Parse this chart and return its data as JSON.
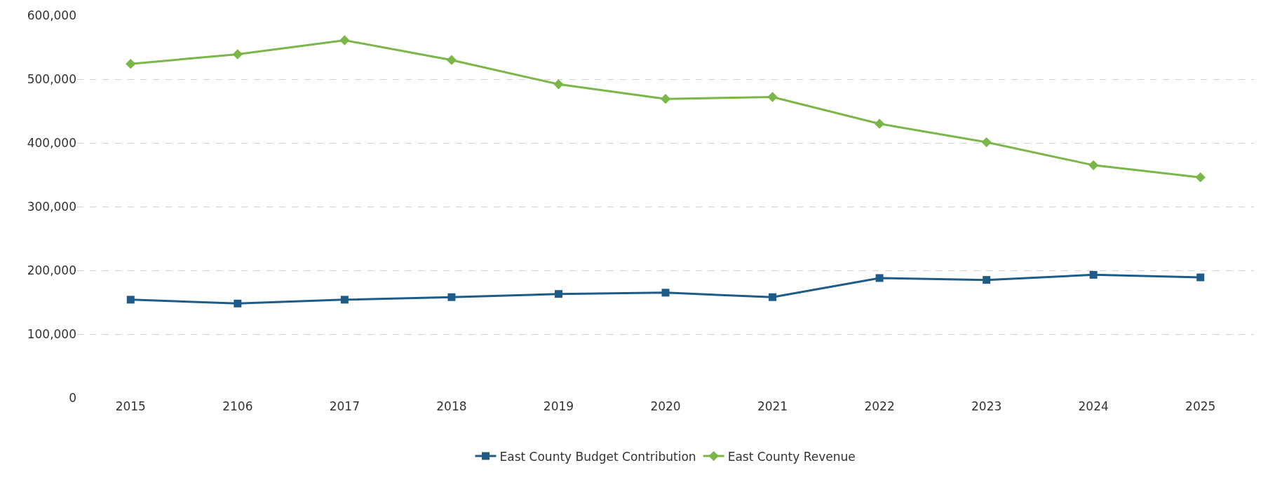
{
  "chart_data": {
    "type": "line",
    "categories": [
      "2015",
      "2106",
      "2017",
      "2018",
      "2019",
      "2020",
      "2021",
      "2022",
      "2023",
      "2024",
      "2025"
    ],
    "series": [
      {
        "name": "East County Budget Contribution",
        "color": "#1d5c88",
        "marker": "square",
        "values": [
          154000,
          148000,
          154000,
          158000,
          163000,
          165000,
          158000,
          188000,
          185000,
          193000,
          189000
        ]
      },
      {
        "name": "East County Revenue",
        "color": "#7ab648",
        "marker": "diamond",
        "values": [
          524000,
          539000,
          561000,
          530000,
          492000,
          469000,
          472000,
          430000,
          401000,
          365000,
          346000
        ]
      }
    ],
    "ylim": [
      0,
      600000
    ],
    "yticks": [
      {
        "value": 0,
        "label": "0"
      },
      {
        "value": 100000,
        "label": "100,000"
      },
      {
        "value": 200000,
        "label": "200,000"
      },
      {
        "value": 300000,
        "label": "300,000"
      },
      {
        "value": 400000,
        "label": "400,000"
      },
      {
        "value": 500000,
        "label": "500,000"
      },
      {
        "value": 600000,
        "label": "600,000"
      }
    ],
    "grid": "y",
    "legend": "bottom",
    "line_style": "solid"
  }
}
